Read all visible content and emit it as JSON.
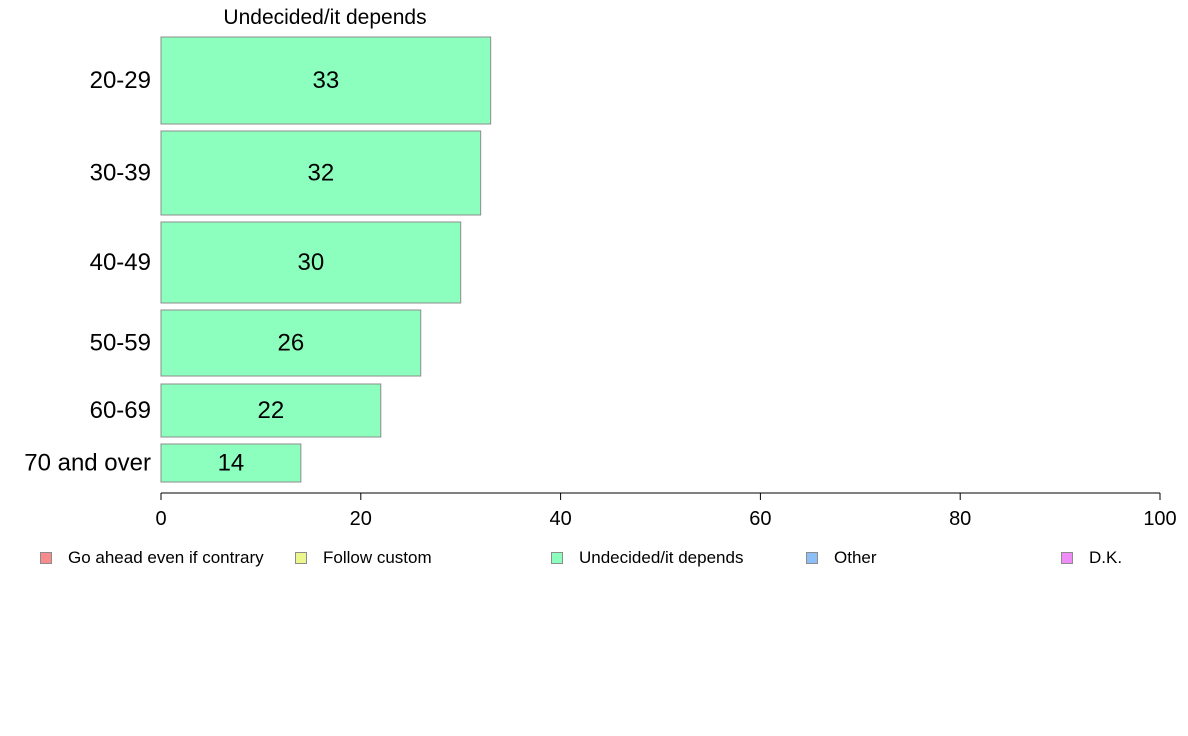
{
  "chart_data": {
    "type": "bar",
    "orientation": "horizontal",
    "title": "Undecided/it depends",
    "categories": [
      "20-29",
      "30-39",
      "40-49",
      "50-59",
      "60-69",
      "70 and over"
    ],
    "values": [
      33,
      32,
      30,
      26,
      22,
      14
    ],
    "xlim": [
      0,
      100
    ],
    "xticks": [
      "0",
      "20",
      "40",
      "60",
      "80",
      "100"
    ],
    "xlabel": "",
    "ylabel": "",
    "grid": false,
    "bar_color": "#8cffbe",
    "bar_border_color": "#8c8c8c",
    "legend_position": "bottom",
    "legend": [
      {
        "label": "Go ahead even if contrary",
        "color": "#f78c8c"
      },
      {
        "label": "Follow custom",
        "color": "#ebf78c"
      },
      {
        "label": "Undecided/it depends",
        "color": "#8cffbe"
      },
      {
        "label": "Other",
        "color": "#8cbef7"
      },
      {
        "label": "D.K.",
        "color": "#ef8cf7"
      }
    ]
  }
}
